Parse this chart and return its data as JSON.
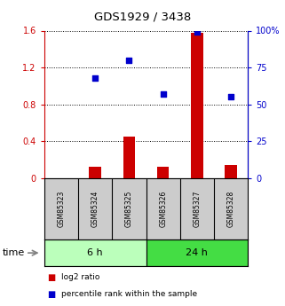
{
  "title": "GDS1929 / 3438",
  "samples": [
    "GSM85323",
    "GSM85324",
    "GSM85325",
    "GSM85326",
    "GSM85327",
    "GSM85328"
  ],
  "log2_ratio": [
    0.0,
    0.13,
    0.45,
    0.13,
    1.58,
    0.15
  ],
  "percentile_rank": [
    null,
    0.68,
    0.8,
    0.57,
    0.99,
    0.555
  ],
  "groups": [
    {
      "label": "6 h",
      "indices": [
        0,
        1,
        2
      ],
      "color": "#bbffbb"
    },
    {
      "label": "24 h",
      "indices": [
        3,
        4,
        5
      ],
      "color": "#44dd44"
    }
  ],
  "bar_color": "#cc0000",
  "dot_color": "#0000cc",
  "left_ylim": [
    0,
    1.6
  ],
  "right_ylim": [
    0,
    100
  ],
  "left_yticks": [
    0,
    0.4,
    0.8,
    1.2,
    1.6
  ],
  "right_yticks": [
    0,
    25,
    50,
    75,
    100
  ],
  "left_yticklabels": [
    "0",
    "0.4",
    "0.8",
    "1.2",
    "1.6"
  ],
  "right_yticklabels": [
    "0",
    "25",
    "50",
    "75",
    "100%"
  ],
  "legend_items": [
    {
      "label": "log2 ratio",
      "color": "#cc0000"
    },
    {
      "label": "percentile rank within the sample",
      "color": "#0000cc"
    }
  ],
  "time_label": "time",
  "sample_box_color": "#cccccc",
  "bg_color": "#ffffff",
  "bar_width": 0.35,
  "dot_size": 22
}
